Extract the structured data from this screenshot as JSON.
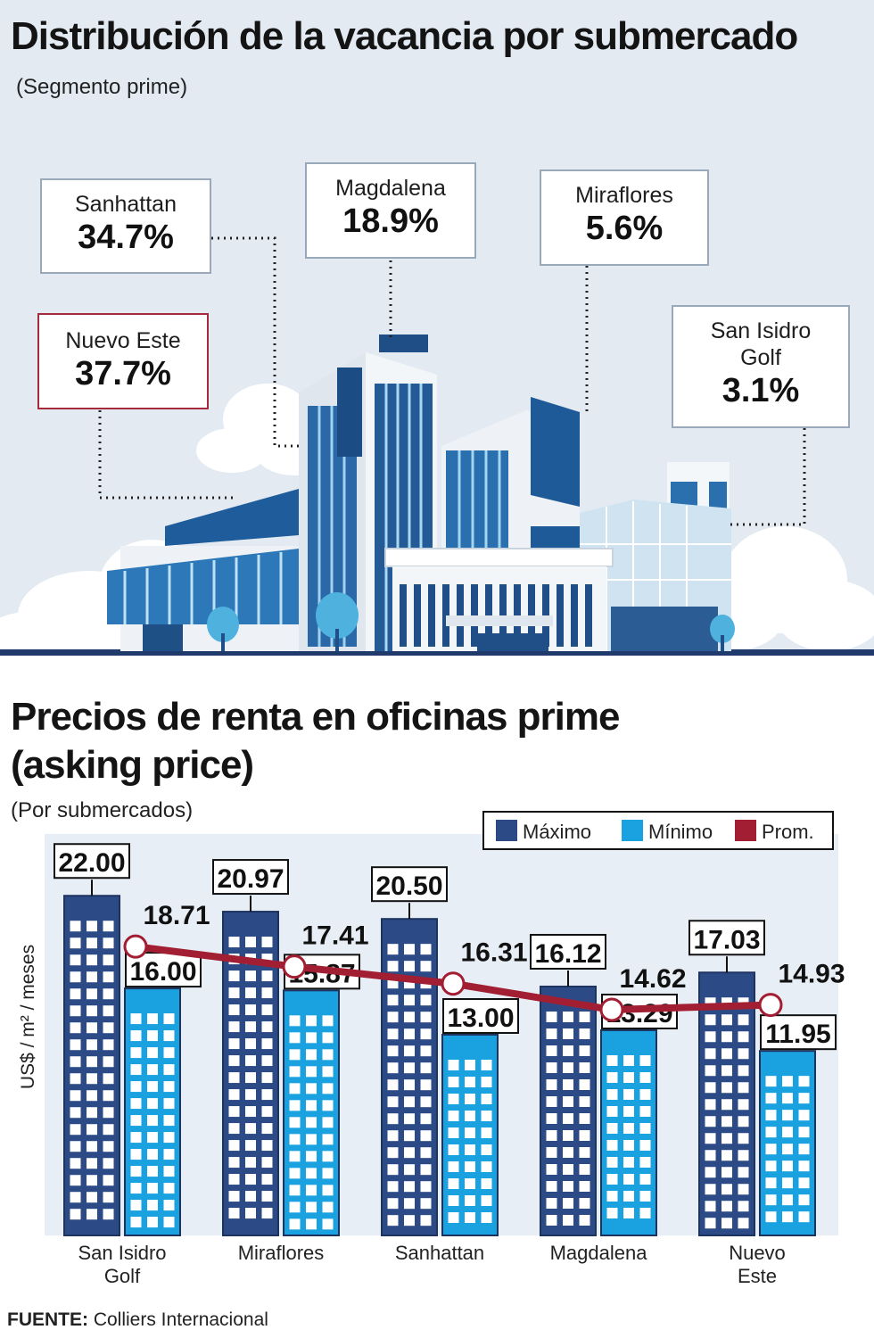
{
  "vacancy": {
    "title": "Distribución de la vacancia por submercado",
    "subtitle": "(Segmento prime)",
    "items": [
      {
        "name": "Sanhattan",
        "pct": "34.7%"
      },
      {
        "name": "Magdalena",
        "pct": "18.9%"
      },
      {
        "name": "Miraflores",
        "pct": "5.6%"
      },
      {
        "name": "Nuevo Este",
        "pct": "37.7%"
      },
      {
        "name_line1": "San Isidro",
        "name_line2": "Golf",
        "pct": "3.1%"
      }
    ]
  },
  "prices": {
    "title_line1": "Precios de renta en oficinas prime",
    "title_line2": "(asking price)",
    "subtitle": "(Por submercados)"
  },
  "chart_data": {
    "type": "bar",
    "title": "Precios de renta en oficinas prime (asking price)",
    "ylabel": "US$ / m² / meses",
    "categories": [
      "San Isidro Golf",
      "Miraflores",
      "Sanhattan",
      "Magdalena",
      "Nuevo Este"
    ],
    "category_lines": [
      [
        "San Isidro",
        "Golf"
      ],
      [
        "Miraflores"
      ],
      [
        "Sanhattan"
      ],
      [
        "Magdalena"
      ],
      [
        "Nuevo",
        "Este"
      ]
    ],
    "series": [
      {
        "name": "Máximo",
        "values": [
          22.0,
          20.97,
          20.5,
          16.12,
          17.03
        ],
        "labels": [
          "22.00",
          "20.97",
          "20.50",
          "16.12",
          "17.03"
        ]
      },
      {
        "name": "Mínimo",
        "values": [
          16.0,
          15.87,
          13.0,
          13.29,
          11.95
        ],
        "labels": [
          "16.00",
          "15.87",
          "13.00",
          "13.29",
          "11.95"
        ]
      },
      {
        "name": "Prom.",
        "values": [
          18.71,
          17.41,
          16.31,
          14.62,
          14.93
        ],
        "labels": [
          "18.71",
          "17.41",
          "16.31",
          "14.62",
          "14.93"
        ]
      }
    ],
    "ylim": [
      0,
      26
    ],
    "legend": "top-right",
    "grid": false
  },
  "colors": {
    "max": "#2b4a86",
    "min": "#1aa1e0",
    "avg": "#a21e32",
    "window": "#ffffff",
    "chart_bg": "#e8eef5"
  },
  "source": {
    "label": "FUENTE:",
    "text": " Colliers Internacional"
  }
}
